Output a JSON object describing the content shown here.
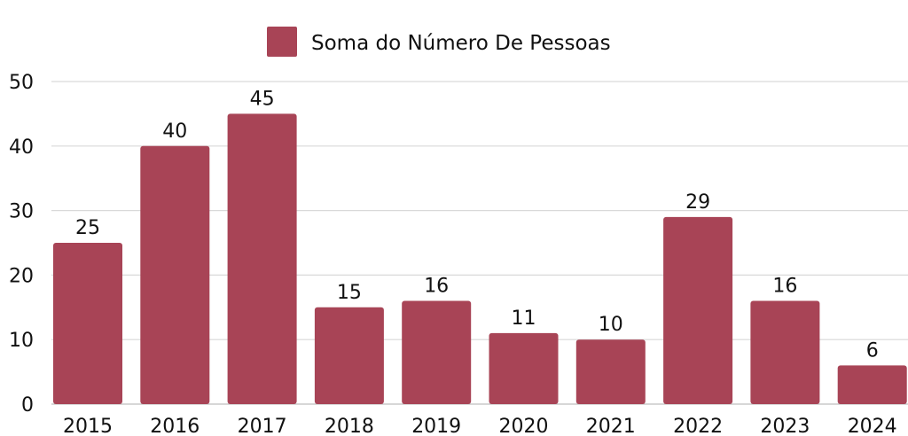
{
  "chart_data": {
    "type": "bar",
    "categories": [
      "2015",
      "2016",
      "2017",
      "2018",
      "2019",
      "2020",
      "2021",
      "2022",
      "2023",
      "2024"
    ],
    "series": [
      {
        "name": "Soma do Número De Pessoas",
        "values": [
          25,
          40,
          45,
          15,
          16,
          11,
          10,
          29,
          16,
          6
        ]
      }
    ],
    "ylim": [
      0,
      50
    ],
    "yticks": [
      "0",
      "10",
      "20",
      "30",
      "40",
      "50"
    ],
    "grid": true,
    "legend_position": "top-center",
    "data_labels": [
      "25",
      "40",
      "45",
      "15",
      "16",
      "11",
      "10",
      "29",
      "16",
      "6"
    ],
    "colors": {
      "bar": "#A84456",
      "grid": "#D9D9D9",
      "axis": "#BFBFBF",
      "text": "#111111"
    }
  }
}
